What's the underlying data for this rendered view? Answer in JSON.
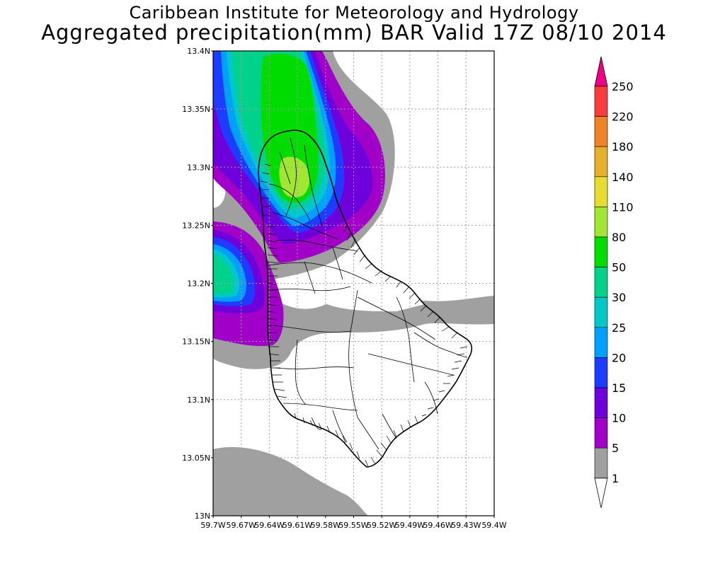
{
  "header": {
    "line1": "Caribbean Institute for Meteorology and Hydrology",
    "line2": "Aggregated precipitation(mm) BAR Valid 17Z 08/10 2014"
  },
  "map": {
    "region": "Barbados",
    "lat_range": [
      13.0,
      13.4
    ],
    "lon_range": [
      -59.7,
      -59.4
    ],
    "lat_ticks": [
      "13N",
      "13.05N",
      "13.1N",
      "13.15N",
      "13.2N",
      "13.25N",
      "13.3N",
      "13.35N",
      "13.4N"
    ],
    "lon_ticks": [
      "59.7W",
      "59.67W",
      "59.64W",
      "59.61W",
      "59.58W",
      "59.55W",
      "59.52W",
      "59.49W",
      "59.46W",
      "59.43W",
      "59.4W"
    ],
    "grid": "dotted",
    "features": [
      "precipitation-contours",
      "island-coastline",
      "parish-boundaries",
      "watersheds"
    ]
  },
  "colorbar": {
    "labels": [
      "1",
      "5",
      "10",
      "15",
      "20",
      "25",
      "30",
      "50",
      "80",
      "110",
      "140",
      "180",
      "220",
      "250"
    ],
    "colors": [
      "#a0a0a0",
      "#a000c8",
      "#6e00dc",
      "#1e3cff",
      "#00a0ff",
      "#00c8c8",
      "#00d28c",
      "#00dc00",
      "#a0e632",
      "#e6dc32",
      "#e6af2d",
      "#f08228",
      "#fa3c3c",
      "#f00082"
    ],
    "under_color": "#ffffff",
    "over_color": "#f00082"
  }
}
